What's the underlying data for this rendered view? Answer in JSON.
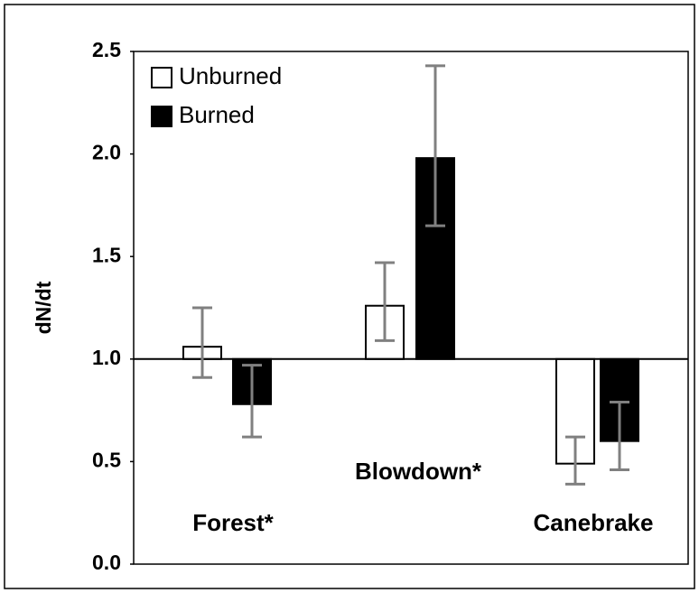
{
  "chart_data": {
    "type": "bar",
    "y_label": "dN/dt",
    "categories": [
      "Forest*",
      "Blowdown*",
      "Canebrake"
    ],
    "series": [
      {
        "name": "Unburned",
        "color": "#ffffff",
        "values": [
          1.06,
          1.26,
          0.49
        ],
        "error_lower": [
          0.91,
          1.09,
          0.39
        ],
        "error_upper": [
          1.25,
          1.47,
          0.62
        ]
      },
      {
        "name": "Burned",
        "color": "#000000",
        "values": [
          0.78,
          1.98,
          0.6
        ],
        "error_lower": [
          0.62,
          1.65,
          0.46
        ],
        "error_upper": [
          0.97,
          2.43,
          0.79
        ]
      }
    ],
    "bar_base": 1.0,
    "error_color": "#808080",
    "ylim": [
      0,
      2.5
    ],
    "yticks": [
      {
        "value": 0,
        "label": "0.0"
      },
      0.5,
      {
        "value": 1,
        "label": "1.0"
      },
      1.5,
      {
        "value": 2,
        "label": "2.0"
      },
      2.5
    ],
    "legend": "top-left"
  }
}
